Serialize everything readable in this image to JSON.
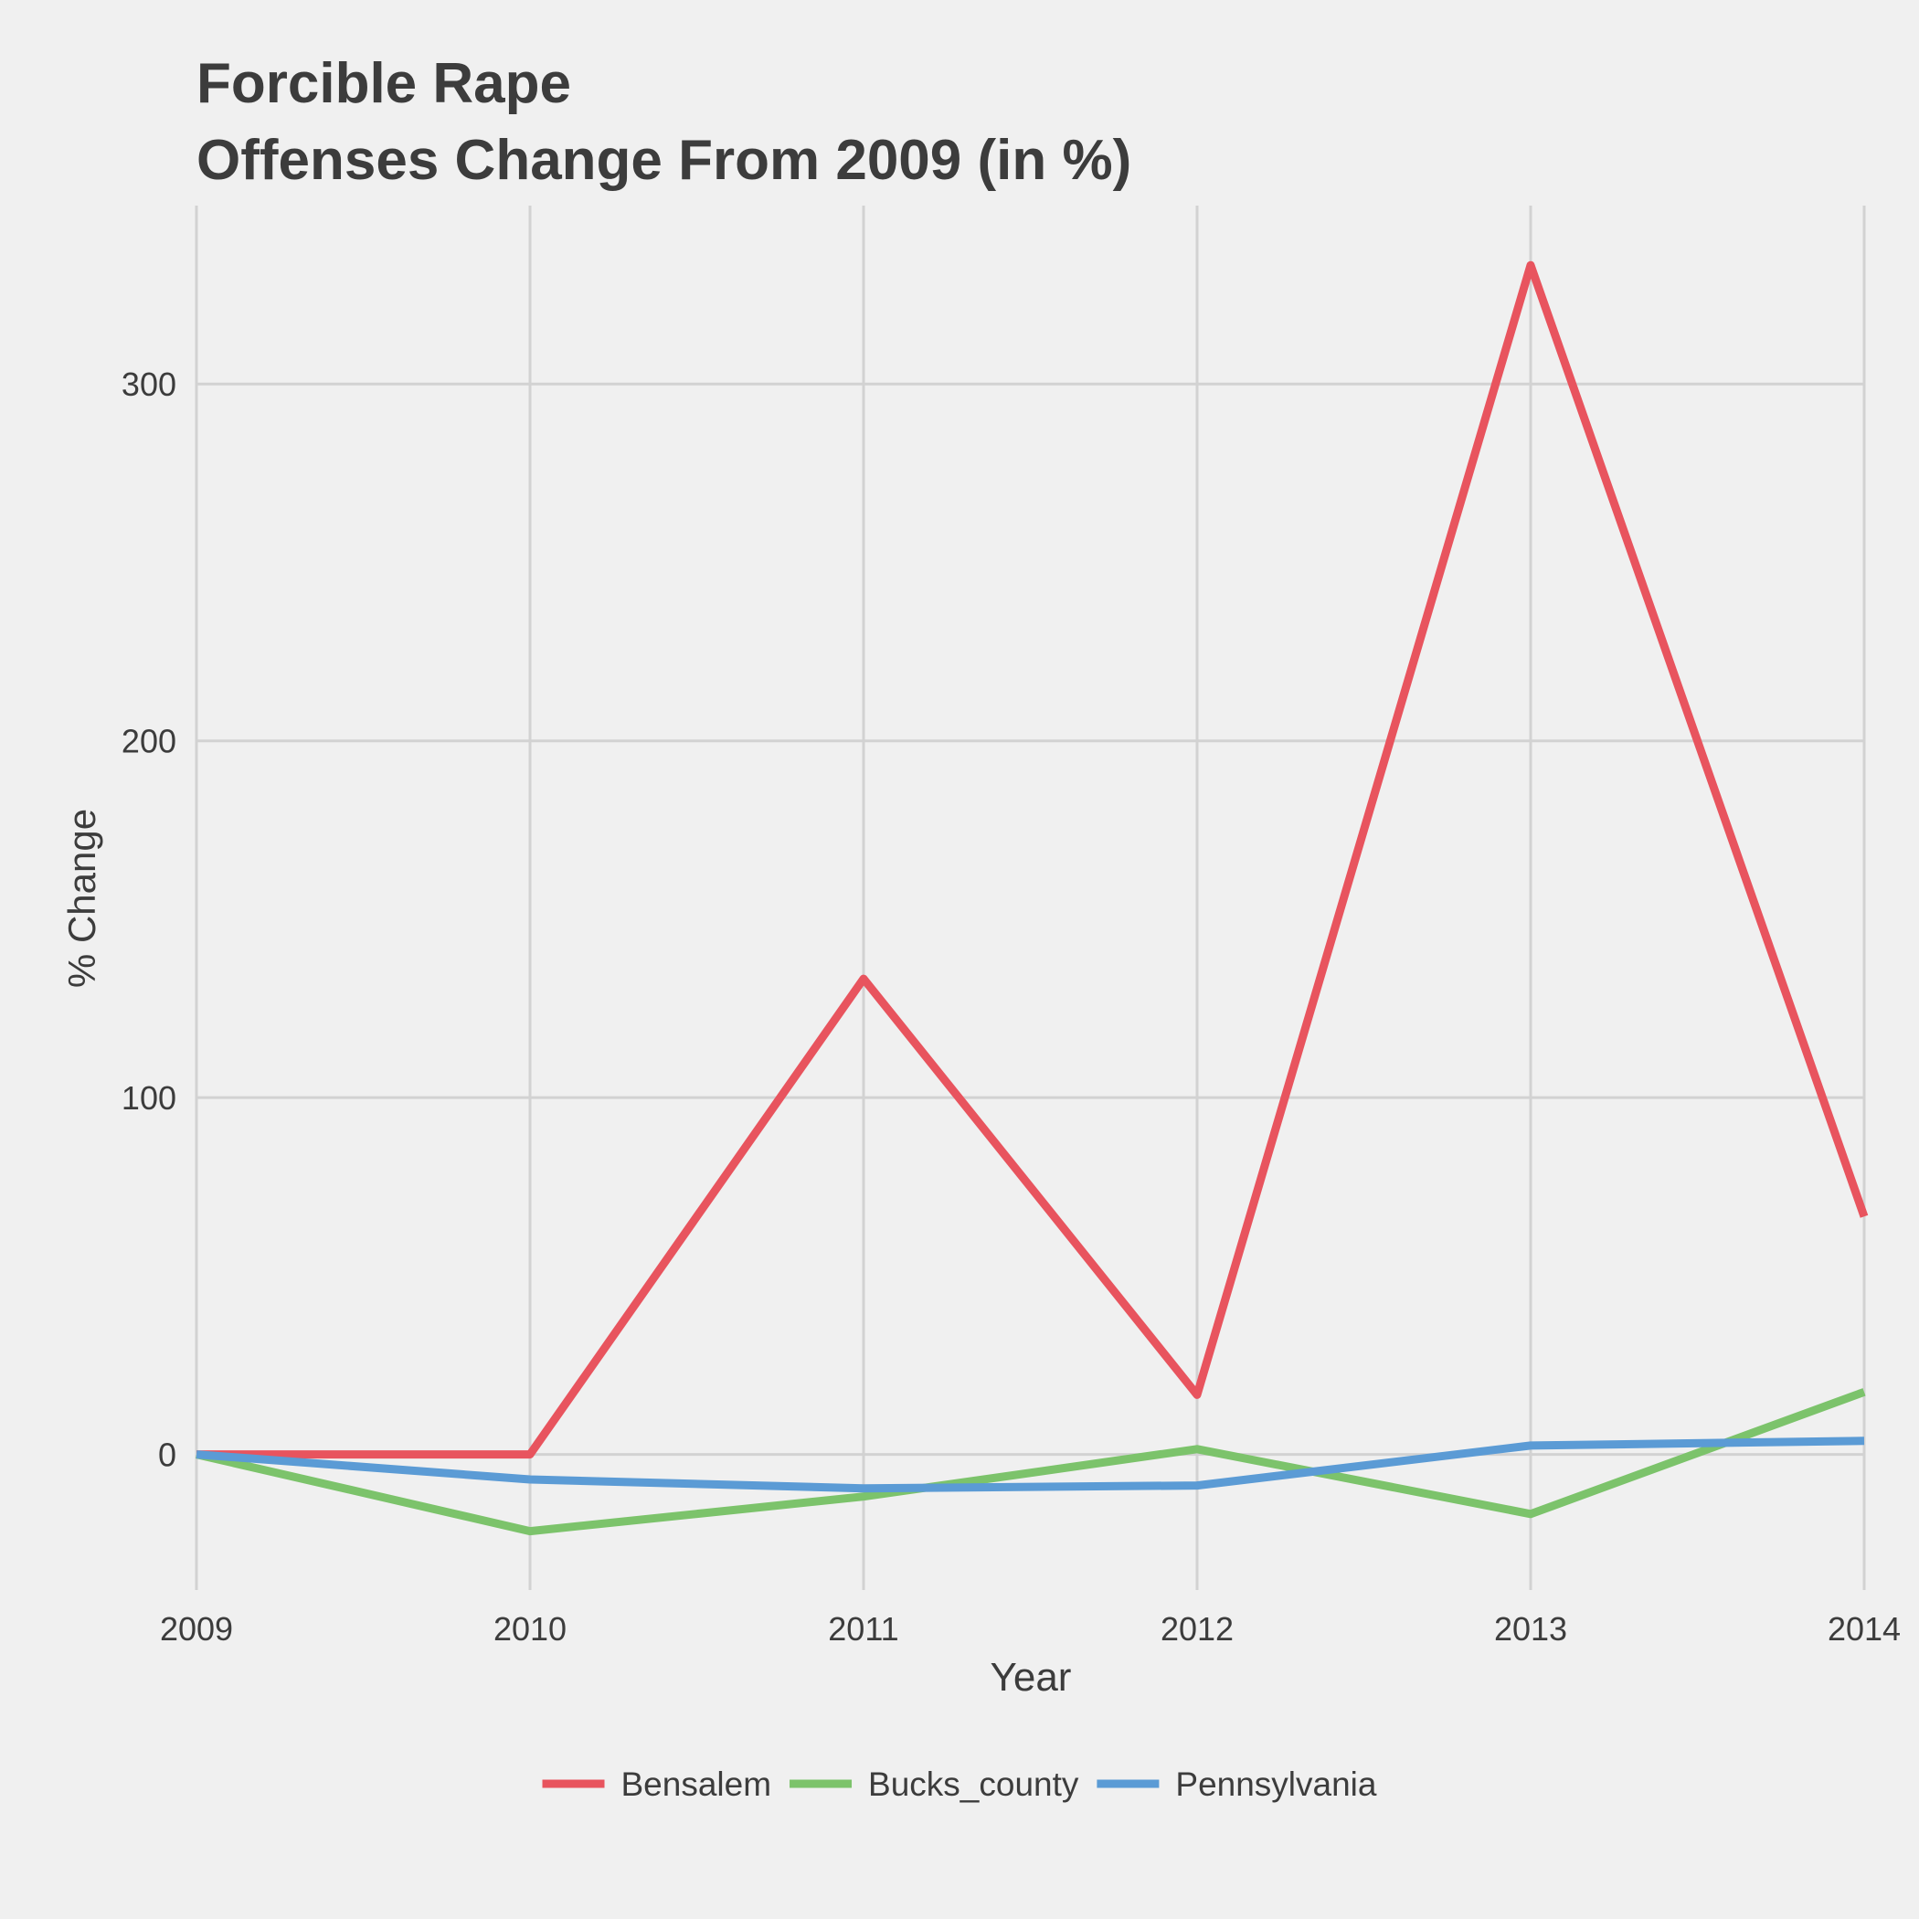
{
  "chart_data": {
    "type": "line",
    "title_lines": [
      "Forcible Rape",
      "Offenses Change From 2009 (in %)"
    ],
    "xlabel": "Year",
    "ylabel": "% Change",
    "x": [
      2009,
      2010,
      2011,
      2012,
      2013,
      2014
    ],
    "x_tick_labels": [
      "2009",
      "2010",
      "2011",
      "2012",
      "2013",
      "2014"
    ],
    "xlim": [
      2009,
      2014
    ],
    "y_ticks": [
      0,
      100,
      200,
      300
    ],
    "y_tick_labels": [
      "0",
      "100",
      "200",
      "300"
    ],
    "ylim": [
      -38,
      350
    ],
    "grid": true,
    "legend_position": "bottom",
    "series": [
      {
        "name": "Bensalem",
        "color": "#e8545e",
        "values": [
          0,
          0,
          133.3,
          16.7,
          333.3,
          66.7
        ]
      },
      {
        "name": "Bucks_county",
        "color": "#7cc36b",
        "values": [
          0,
          -21.5,
          -11.8,
          1.5,
          -16.7,
          17.5
        ]
      },
      {
        "name": "Pennsylvania",
        "color": "#5b9bd5",
        "values": [
          0,
          -7,
          -9.5,
          -8.7,
          2.5,
          3.8
        ]
      }
    ]
  }
}
